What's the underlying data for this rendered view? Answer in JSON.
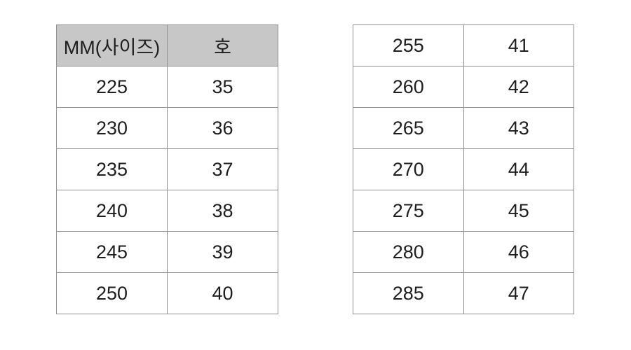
{
  "colors": {
    "page_background": "#ffffff",
    "header_background": "#c7c7c7",
    "border": "#8f8f8f",
    "text": "#1e1e1e"
  },
  "tables": {
    "left": {
      "headers": [
        "MM(사이즈)",
        "호"
      ],
      "rows": [
        [
          "225",
          "35"
        ],
        [
          "230",
          "36"
        ],
        [
          "235",
          "37"
        ],
        [
          "240",
          "38"
        ],
        [
          "245",
          "39"
        ],
        [
          "250",
          "40"
        ]
      ]
    },
    "right": {
      "rows": [
        [
          "255",
          "41"
        ],
        [
          "260",
          "42"
        ],
        [
          "265",
          "43"
        ],
        [
          "270",
          "44"
        ],
        [
          "275",
          "45"
        ],
        [
          "280",
          "46"
        ],
        [
          "285",
          "47"
        ]
      ]
    }
  },
  "chart_data": [
    {
      "type": "table",
      "title": "Shoe size conversion chart (left panel, with header)",
      "columns": [
        "MM(사이즈)",
        "호"
      ],
      "rows": [
        [
          "225",
          "35"
        ],
        [
          "230",
          "36"
        ],
        [
          "235",
          "37"
        ],
        [
          "240",
          "38"
        ],
        [
          "245",
          "39"
        ],
        [
          "250",
          "40"
        ]
      ]
    },
    {
      "type": "table",
      "title": "Shoe size conversion chart (right panel, continuation, no header)",
      "columns": [
        "MM(사이즈)",
        "호"
      ],
      "rows": [
        [
          "255",
          "41"
        ],
        [
          "260",
          "42"
        ],
        [
          "265",
          "43"
        ],
        [
          "270",
          "44"
        ],
        [
          "275",
          "45"
        ],
        [
          "280",
          "46"
        ],
        [
          "285",
          "47"
        ]
      ]
    }
  ]
}
